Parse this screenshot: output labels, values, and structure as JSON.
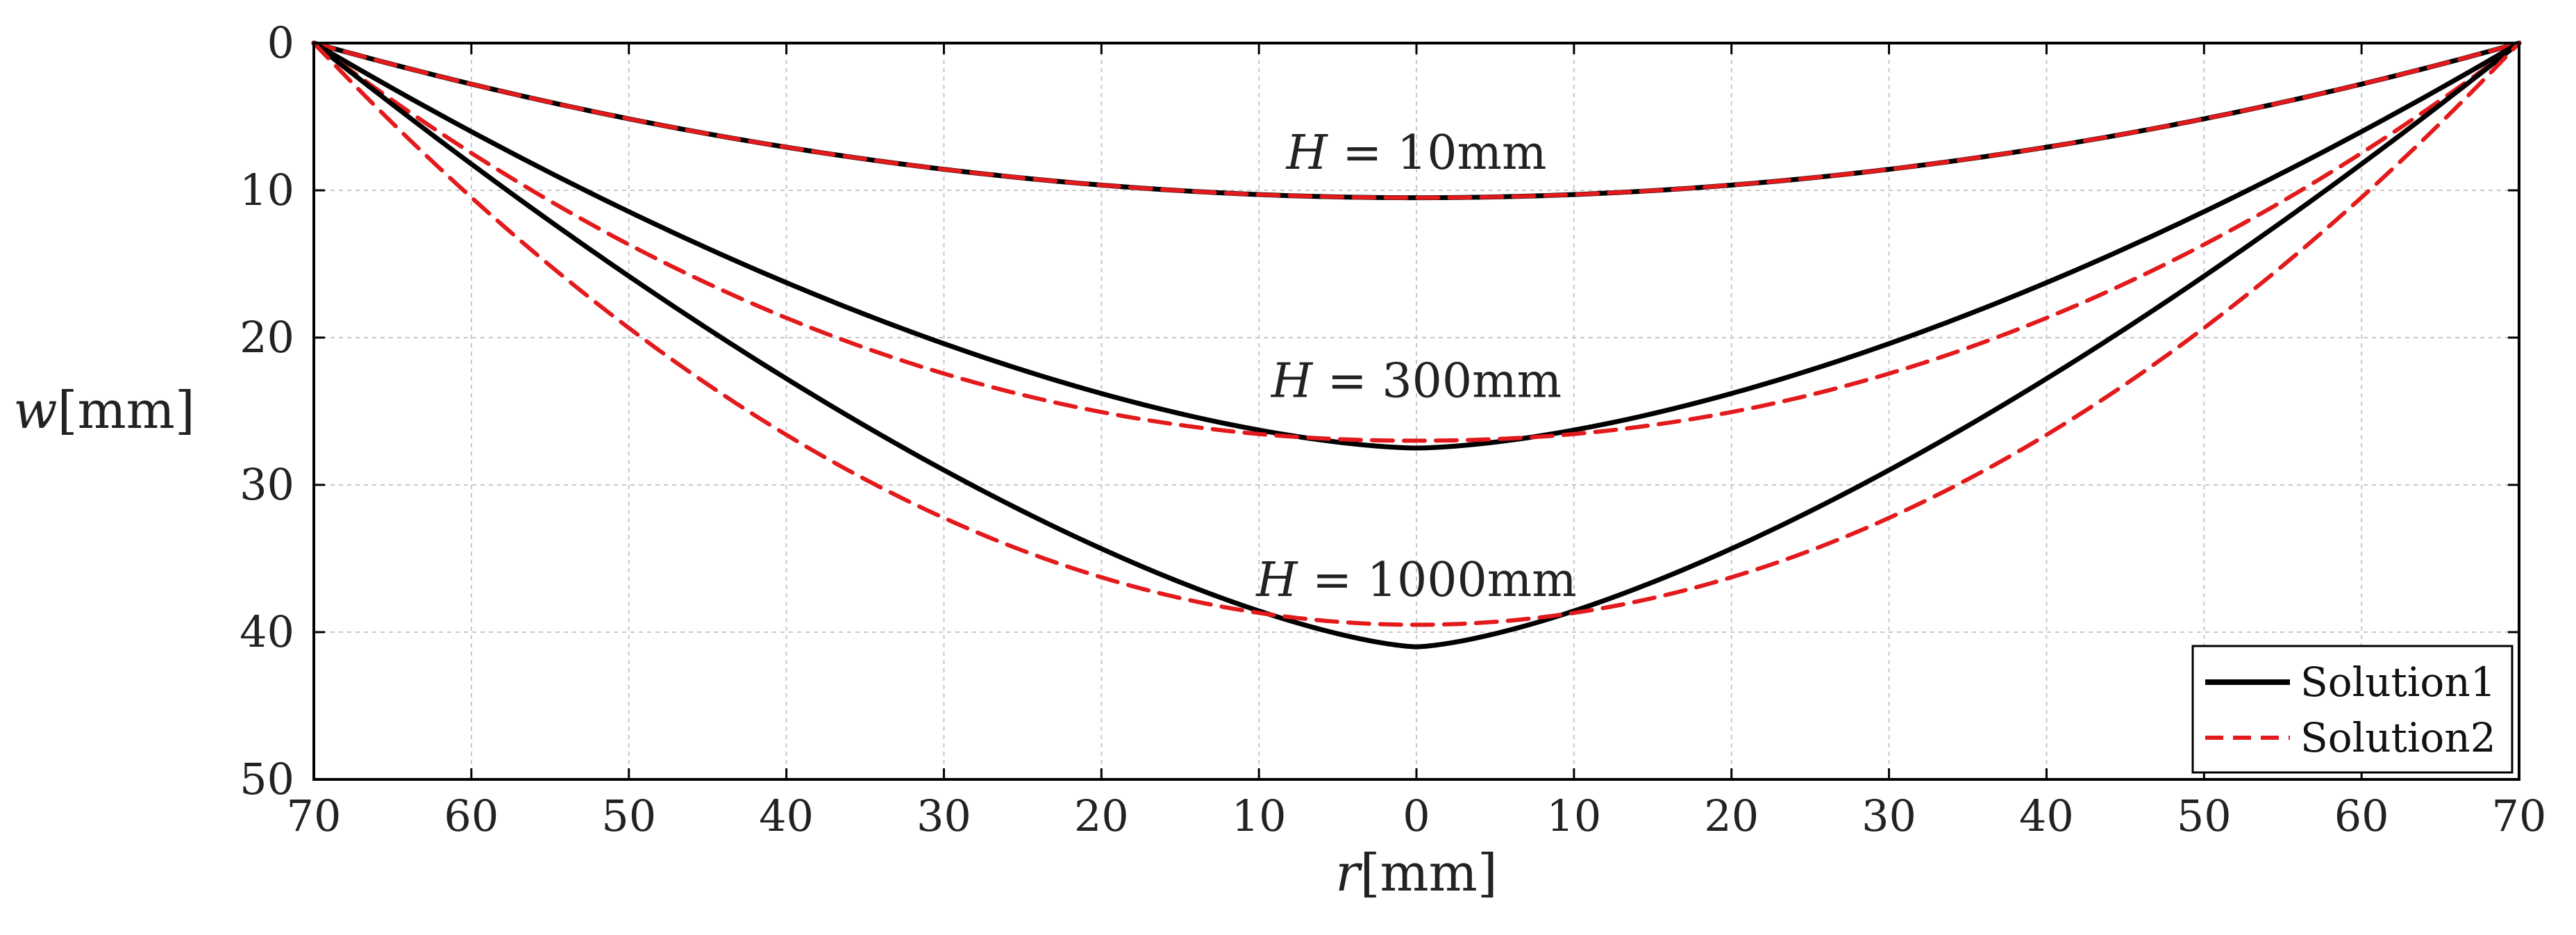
{
  "chart_data": {
    "type": "line",
    "title": "",
    "xlabel": "r[mm]",
    "xlabel_var": "r",
    "xlabel_unit": "[mm]",
    "ylabel": "w[mm]",
    "ylabel_var": "w",
    "ylabel_unit": "[mm]",
    "xlim": [
      -70,
      70
    ],
    "ylim": [
      0,
      50
    ],
    "y_inverted": true,
    "x_ticks": [
      -70,
      -60,
      -50,
      -40,
      -30,
      -20,
      -10,
      0,
      10,
      20,
      30,
      40,
      50,
      60,
      70
    ],
    "x_tick_labels": [
      "70",
      "60",
      "50",
      "40",
      "30",
      "20",
      "10",
      "0",
      "10",
      "20",
      "30",
      "40",
      "50",
      "60",
      "70"
    ],
    "y_ticks": [
      0,
      10,
      20,
      30,
      40,
      50
    ],
    "y_tick_labels": [
      "0",
      "10",
      "20",
      "30",
      "40",
      "50"
    ],
    "grid": true,
    "legend_position": "bottom-right",
    "legend": [
      {
        "name": "Solution1",
        "color": "#000000",
        "dash": "solid"
      },
      {
        "name": "Solution2",
        "color": "#e31a1c",
        "dash": "dashed"
      }
    ],
    "series": [
      {
        "name": "Solution1",
        "case": "H=10mm",
        "color": "#000000",
        "dash": "solid",
        "max_deflection": 10.5,
        "shape_exponent": 2.0
      },
      {
        "name": "Solution2",
        "case": "H=10mm",
        "color": "#e31a1c",
        "dash": "dashed",
        "max_deflection": 10.5,
        "shape_exponent": 2.0
      },
      {
        "name": "Solution1",
        "case": "H=300mm",
        "color": "#000000",
        "dash": "solid",
        "max_deflection": 27.5,
        "shape_exponent": 1.6
      },
      {
        "name": "Solution2",
        "case": "H=300mm",
        "color": "#e31a1c",
        "dash": "dashed",
        "max_deflection": 27.0,
        "shape_exponent": 2.1
      },
      {
        "name": "Solution1",
        "case": "H=1000mm",
        "color": "#000000",
        "dash": "solid",
        "max_deflection": 41.0,
        "shape_exponent": 1.45
      },
      {
        "name": "Solution2",
        "case": "H=1000mm",
        "color": "#e31a1c",
        "dash": "dashed",
        "max_deflection": 39.5,
        "shape_exponent": 2.0
      }
    ],
    "annotations": [
      {
        "var": "H",
        "text": " = 10mm",
        "x": 0,
        "y": 7.5
      },
      {
        "var": "H",
        "text": " = 300mm",
        "x": 0,
        "y": 23
      },
      {
        "var": "H",
        "text": " = 1000mm",
        "x": 0,
        "y": 36.5
      }
    ]
  }
}
